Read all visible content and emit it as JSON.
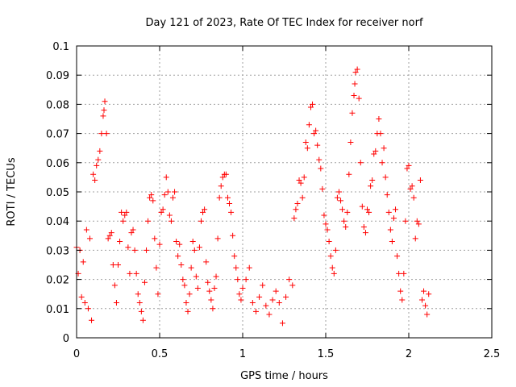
{
  "chart_data": {
    "type": "scatter",
    "title": "Day 121 of 2023, Rate Of TEC Index for receiver norf",
    "xlabel": "GPS time / hours",
    "ylabel": "ROTI / TECUs",
    "xlim": [
      0,
      2.5
    ],
    "ylim": [
      0,
      0.1
    ],
    "x_ticks": [
      "0",
      "0.5",
      "1",
      "1.5",
      "2",
      "2.5"
    ],
    "y_ticks": [
      "0",
      "0.01",
      "0.02",
      "0.03",
      "0.04",
      "0.05",
      "0.06",
      "0.07",
      "0.08",
      "0.09",
      "0.1"
    ],
    "grid": true,
    "marker": "plus",
    "color": "#ff0000",
    "points": [
      [
        0.0,
        0.031
      ],
      [
        0.01,
        0.022
      ],
      [
        0.02,
        0.03
      ],
      [
        0.03,
        0.014
      ],
      [
        0.04,
        0.026
      ],
      [
        0.05,
        0.012
      ],
      [
        0.06,
        0.037
      ],
      [
        0.07,
        0.01
      ],
      [
        0.08,
        0.034
      ],
      [
        0.09,
        0.006
      ],
      [
        0.1,
        0.056
      ],
      [
        0.11,
        0.054
      ],
      [
        0.12,
        0.059
      ],
      [
        0.13,
        0.061
      ],
      [
        0.14,
        0.064
      ],
      [
        0.15,
        0.07
      ],
      [
        0.16,
        0.076
      ],
      [
        0.165,
        0.078
      ],
      [
        0.17,
        0.081
      ],
      [
        0.18,
        0.07
      ],
      [
        0.19,
        0.034
      ],
      [
        0.2,
        0.035
      ],
      [
        0.21,
        0.036
      ],
      [
        0.22,
        0.025
      ],
      [
        0.23,
        0.018
      ],
      [
        0.24,
        0.012
      ],
      [
        0.25,
        0.025
      ],
      [
        0.26,
        0.033
      ],
      [
        0.27,
        0.043
      ],
      [
        0.28,
        0.04
      ],
      [
        0.29,
        0.042
      ],
      [
        0.3,
        0.043
      ],
      [
        0.31,
        0.031
      ],
      [
        0.32,
        0.022
      ],
      [
        0.33,
        0.036
      ],
      [
        0.34,
        0.037
      ],
      [
        0.35,
        0.03
      ],
      [
        0.36,
        0.022
      ],
      [
        0.37,
        0.015
      ],
      [
        0.38,
        0.012
      ],
      [
        0.39,
        0.009
      ],
      [
        0.4,
        0.006
      ],
      [
        0.41,
        0.019
      ],
      [
        0.42,
        0.03
      ],
      [
        0.43,
        0.04
      ],
      [
        0.44,
        0.048
      ],
      [
        0.45,
        0.049
      ],
      [
        0.46,
        0.047
      ],
      [
        0.47,
        0.034
      ],
      [
        0.48,
        0.024
      ],
      [
        0.49,
        0.015
      ],
      [
        0.5,
        0.032
      ],
      [
        0.51,
        0.043
      ],
      [
        0.52,
        0.044
      ],
      [
        0.53,
        0.049
      ],
      [
        0.54,
        0.055
      ],
      [
        0.55,
        0.05
      ],
      [
        0.56,
        0.042
      ],
      [
        0.57,
        0.04
      ],
      [
        0.58,
        0.048
      ],
      [
        0.59,
        0.05
      ],
      [
        0.6,
        0.033
      ],
      [
        0.61,
        0.028
      ],
      [
        0.62,
        0.032
      ],
      [
        0.63,
        0.025
      ],
      [
        0.64,
        0.02
      ],
      [
        0.65,
        0.018
      ],
      [
        0.66,
        0.012
      ],
      [
        0.67,
        0.009
      ],
      [
        0.68,
        0.015
      ],
      [
        0.69,
        0.024
      ],
      [
        0.7,
        0.033
      ],
      [
        0.71,
        0.03
      ],
      [
        0.72,
        0.021
      ],
      [
        0.73,
        0.017
      ],
      [
        0.74,
        0.031
      ],
      [
        0.75,
        0.04
      ],
      [
        0.76,
        0.043
      ],
      [
        0.77,
        0.044
      ],
      [
        0.78,
        0.026
      ],
      [
        0.79,
        0.019
      ],
      [
        0.8,
        0.016
      ],
      [
        0.81,
        0.013
      ],
      [
        0.82,
        0.01
      ],
      [
        0.83,
        0.017
      ],
      [
        0.84,
        0.021
      ],
      [
        0.85,
        0.034
      ],
      [
        0.86,
        0.048
      ],
      [
        0.87,
        0.052
      ],
      [
        0.88,
        0.055
      ],
      [
        0.89,
        0.056
      ],
      [
        0.9,
        0.056
      ],
      [
        0.91,
        0.048
      ],
      [
        0.92,
        0.046
      ],
      [
        0.93,
        0.043
      ],
      [
        0.94,
        0.035
      ],
      [
        0.95,
        0.028
      ],
      [
        0.96,
        0.024
      ],
      [
        0.97,
        0.02
      ],
      [
        0.98,
        0.015
      ],
      [
        0.99,
        0.013
      ],
      [
        1.0,
        0.017
      ],
      [
        1.02,
        0.02
      ],
      [
        1.04,
        0.024
      ],
      [
        1.06,
        0.012
      ],
      [
        1.08,
        0.009
      ],
      [
        1.1,
        0.014
      ],
      [
        1.12,
        0.018
      ],
      [
        1.14,
        0.011
      ],
      [
        1.16,
        0.008
      ],
      [
        1.18,
        0.013
      ],
      [
        1.2,
        0.016
      ],
      [
        1.22,
        0.012
      ],
      [
        1.24,
        0.005
      ],
      [
        1.26,
        0.014
      ],
      [
        1.28,
        0.02
      ],
      [
        1.3,
        0.018
      ],
      [
        1.31,
        0.041
      ],
      [
        1.32,
        0.044
      ],
      [
        1.33,
        0.046
      ],
      [
        1.34,
        0.054
      ],
      [
        1.35,
        0.053
      ],
      [
        1.36,
        0.048
      ],
      [
        1.37,
        0.055
      ],
      [
        1.38,
        0.067
      ],
      [
        1.39,
        0.065
      ],
      [
        1.4,
        0.073
      ],
      [
        1.41,
        0.079
      ],
      [
        1.42,
        0.08
      ],
      [
        1.43,
        0.07
      ],
      [
        1.44,
        0.071
      ],
      [
        1.45,
        0.066
      ],
      [
        1.46,
        0.061
      ],
      [
        1.47,
        0.058
      ],
      [
        1.48,
        0.051
      ],
      [
        1.49,
        0.042
      ],
      [
        1.5,
        0.039
      ],
      [
        1.51,
        0.037
      ],
      [
        1.52,
        0.033
      ],
      [
        1.53,
        0.028
      ],
      [
        1.54,
        0.024
      ],
      [
        1.55,
        0.022
      ],
      [
        1.56,
        0.03
      ],
      [
        1.57,
        0.048
      ],
      [
        1.58,
        0.05
      ],
      [
        1.59,
        0.047
      ],
      [
        1.6,
        0.044
      ],
      [
        1.61,
        0.04
      ],
      [
        1.62,
        0.038
      ],
      [
        1.63,
        0.043
      ],
      [
        1.64,
        0.056
      ],
      [
        1.65,
        0.067
      ],
      [
        1.66,
        0.077
      ],
      [
        1.67,
        0.083
      ],
      [
        1.675,
        0.087
      ],
      [
        1.68,
        0.091
      ],
      [
        1.69,
        0.092
      ],
      [
        1.7,
        0.082
      ],
      [
        1.71,
        0.06
      ],
      [
        1.72,
        0.045
      ],
      [
        1.73,
        0.038
      ],
      [
        1.74,
        0.036
      ],
      [
        1.75,
        0.044
      ],
      [
        1.76,
        0.043
      ],
      [
        1.77,
        0.052
      ],
      [
        1.78,
        0.054
      ],
      [
        1.79,
        0.063
      ],
      [
        1.8,
        0.064
      ],
      [
        1.81,
        0.07
      ],
      [
        1.82,
        0.075
      ],
      [
        1.83,
        0.07
      ],
      [
        1.84,
        0.06
      ],
      [
        1.85,
        0.065
      ],
      [
        1.86,
        0.055
      ],
      [
        1.87,
        0.049
      ],
      [
        1.88,
        0.043
      ],
      [
        1.89,
        0.037
      ],
      [
        1.9,
        0.033
      ],
      [
        1.91,
        0.041
      ],
      [
        1.92,
        0.044
      ],
      [
        1.93,
        0.028
      ],
      [
        1.94,
        0.022
      ],
      [
        1.95,
        0.016
      ],
      [
        1.96,
        0.013
      ],
      [
        1.97,
        0.022
      ],
      [
        1.98,
        0.04
      ],
      [
        1.99,
        0.058
      ],
      [
        2.0,
        0.059
      ],
      [
        2.01,
        0.051
      ],
      [
        2.02,
        0.052
      ],
      [
        2.03,
        0.048
      ],
      [
        2.04,
        0.034
      ],
      [
        2.05,
        0.04
      ],
      [
        2.06,
        0.039
      ],
      [
        2.07,
        0.054
      ],
      [
        2.08,
        0.013
      ],
      [
        2.09,
        0.016
      ],
      [
        2.1,
        0.011
      ],
      [
        2.11,
        0.008
      ],
      [
        2.12,
        0.015
      ]
    ]
  }
}
